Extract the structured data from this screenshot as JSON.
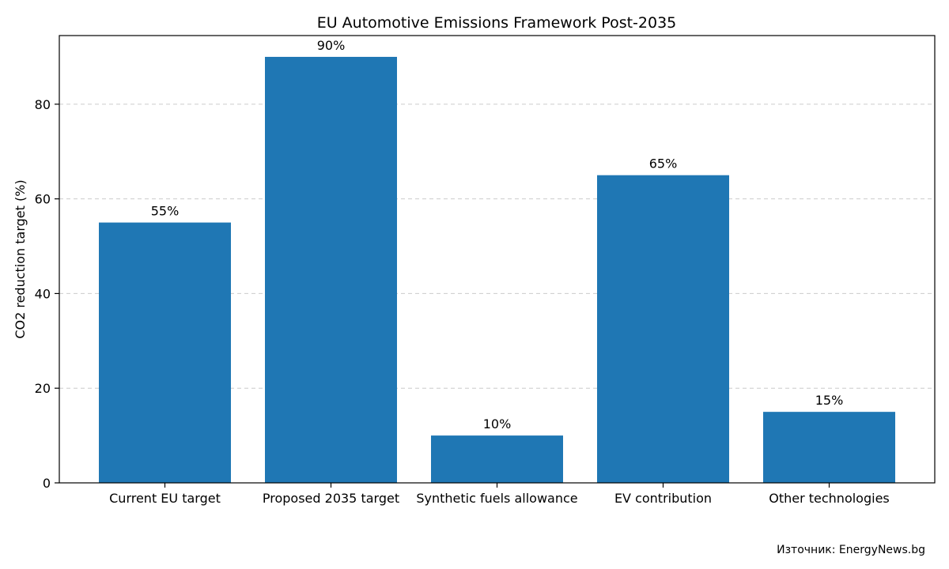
{
  "chart_data": {
    "type": "bar",
    "title": "EU Automotive Emissions Framework Post-2035",
    "xlabel": "",
    "ylabel": "CO2 reduction target (%)",
    "categories": [
      "Current EU target",
      "Proposed 2035 target",
      "Synthetic fuels allowance",
      "EV contribution",
      "Other technologies"
    ],
    "values": [
      55,
      90,
      10,
      65,
      15
    ],
    "data_labels": [
      "55%",
      "90%",
      "10%",
      "65%",
      "15%"
    ],
    "ylim": [
      0,
      94.5
    ],
    "yticks": [
      0,
      20,
      40,
      60,
      80
    ],
    "grid": "y-dashed",
    "bar_color": "#1f77b4",
    "grid_color": "#cccccc"
  },
  "source": "Източник: EnergyNews.bg"
}
